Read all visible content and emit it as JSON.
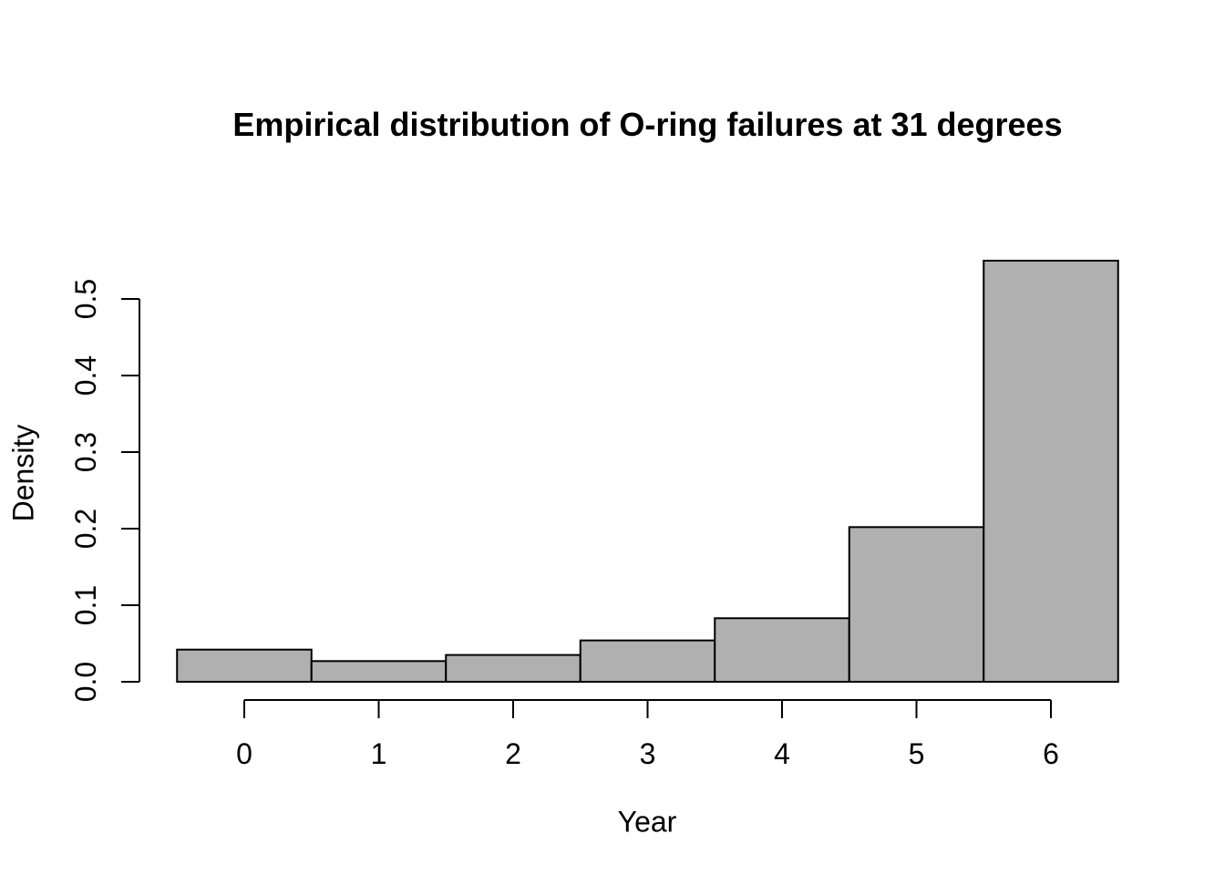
{
  "chart_data": {
    "type": "bar",
    "subtype": "histogram",
    "title": "Empirical distribution of O-ring failures at 31 degrees",
    "xlabel": "Year",
    "ylabel": "Density",
    "categories": [
      0,
      1,
      2,
      3,
      4,
      5,
      6
    ],
    "values": [
      0.042,
      0.027,
      0.035,
      0.054,
      0.083,
      0.202,
      0.55
    ],
    "bin_edges": [
      -0.5,
      0.5,
      1.5,
      2.5,
      3.5,
      4.5,
      5.5,
      6.5
    ],
    "x_ticks": [
      "0",
      "1",
      "2",
      "3",
      "4",
      "5",
      "6"
    ],
    "y_ticks": [
      "0.0",
      "0.1",
      "0.2",
      "0.3",
      "0.4",
      "0.5"
    ],
    "xlim": [
      -0.5,
      6.5
    ],
    "ylim": [
      0,
      0.55
    ],
    "grid": false,
    "legend_position": "none",
    "bar_fill": "#b0b0b0",
    "bar_stroke": "#000000",
    "axis_color": "#000000",
    "text_color": "#000000",
    "background": "#ffffff"
  }
}
